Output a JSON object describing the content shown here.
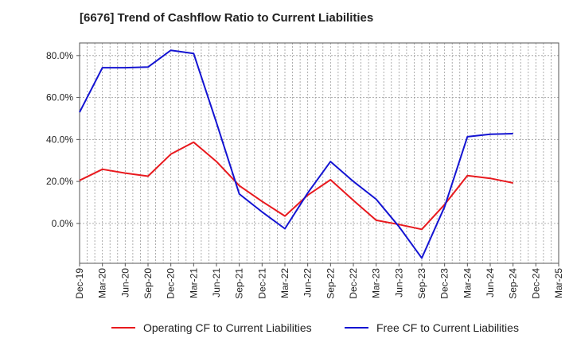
{
  "chart_data": {
    "type": "line",
    "title": "[6676]  Trend of Cashflow Ratio to Current Liabilities",
    "x": [
      "Dec-19",
      "Mar-20",
      "Jun-20",
      "Sep-20",
      "Dec-20",
      "Mar-21",
      "Jun-21",
      "Sep-21",
      "Dec-21",
      "Mar-22",
      "Jun-22",
      "Sep-22",
      "Dec-22",
      "Mar-23",
      "Jun-23",
      "Sep-23",
      "Dec-23",
      "Mar-24",
      "Jun-24",
      "Sep-24",
      "Dec-24",
      "Mar-25"
    ],
    "series": [
      {
        "name": "Operating CF to Current Liabilities",
        "color": "#e8191e",
        "values": [
          20.5,
          25.8,
          24.0,
          22.5,
          33.0,
          38.7,
          29.5,
          18.0,
          10.5,
          3.5,
          13.5,
          20.8,
          11.0,
          1.5,
          -0.5,
          -2.8,
          9.0,
          22.8,
          21.5,
          19.3,
          null,
          null
        ]
      },
      {
        "name": "Free CF to Current Liabilities",
        "color": "#1414d2",
        "values": [
          53.0,
          74.2,
          74.2,
          74.5,
          82.5,
          81.0,
          48.0,
          14.0,
          5.5,
          -2.5,
          14.5,
          29.5,
          20.0,
          11.5,
          -1.5,
          -16.5,
          8.0,
          41.3,
          42.5,
          42.8,
          null,
          null
        ]
      }
    ],
    "y_ticks": [
      {
        "value": 0,
        "label": "0.0%"
      },
      {
        "value": 20,
        "label": "20.0%"
      },
      {
        "value": 40,
        "label": "40.0%"
      },
      {
        "value": 60,
        "label": "60.0%"
      },
      {
        "value": 80,
        "label": "80.0%"
      }
    ],
    "ylim": [
      -19,
      86
    ],
    "grid": true,
    "legend_position": "bottom"
  }
}
